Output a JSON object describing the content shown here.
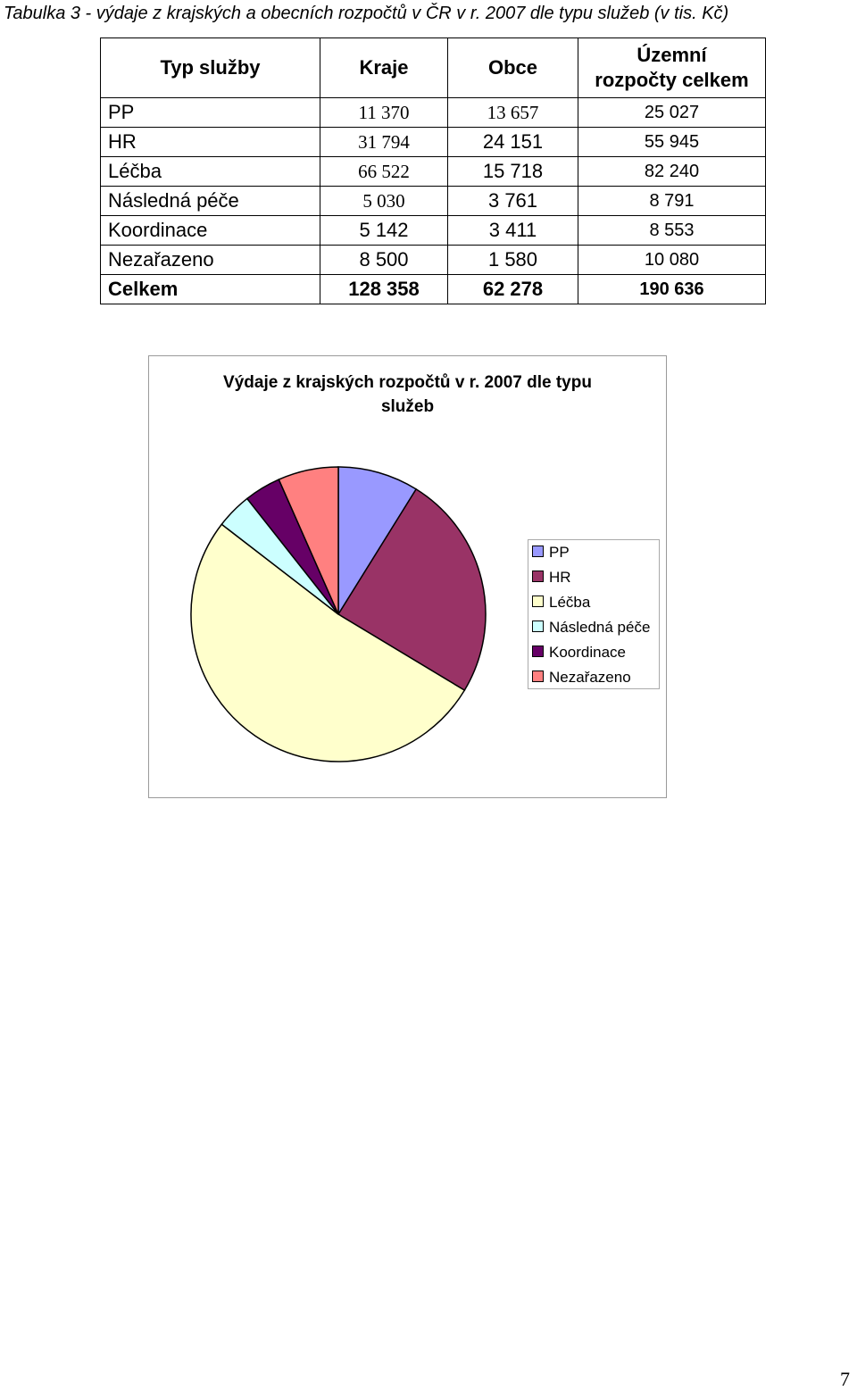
{
  "caption": "Tabulka 3  - výdaje z krajských a obecních rozpočtů v ČR v r. 2007 dle typu služeb (v tis. Kč)",
  "table": {
    "headers": {
      "type": "Typ služby",
      "kraje": "Kraje",
      "obce": "Obce",
      "total_line1": "Územní",
      "total_line2": "rozpočty celkem"
    },
    "rows": [
      {
        "type": "PP",
        "kraje": "11 370",
        "obce": "13 657",
        "total": "25 027"
      },
      {
        "type": "HR",
        "kraje": "31 794",
        "obce": "24 151",
        "total": "55 945"
      },
      {
        "type": "Léčba",
        "kraje": "66 522",
        "obce": "15 718",
        "total": "82 240"
      },
      {
        "type": "Následná péče",
        "kraje": "5 030",
        "obce": "3 761",
        "total": "8 791"
      },
      {
        "type": "Koordinace",
        "kraje": "5 142",
        "obce": "3 411",
        "total": "8 553"
      },
      {
        "type": "Nezařazeno",
        "kraje": "8 500",
        "obce": "1 580",
        "total": "10 080"
      }
    ],
    "total_row": {
      "type": "Celkem",
      "kraje": "128 358",
      "obce": "62 278",
      "total": "190 636"
    }
  },
  "chart_data": {
    "type": "pie",
    "title_line1": "Výdaje z krajských rozpočtů v r. 2007 dle typu",
    "title_line2": "služeb",
    "categories": [
      "PP",
      "HR",
      "Léčba",
      "Následná péče",
      "Koordinace",
      "Nezařazeno"
    ],
    "values": [
      11370,
      31794,
      66522,
      5030,
      5142,
      8500
    ],
    "colors": [
      "#9999FF",
      "#993366",
      "#FFFFCC",
      "#CCFFFF",
      "#660066",
      "#FF8080"
    ],
    "legend_position": "right"
  },
  "page_number": "7"
}
